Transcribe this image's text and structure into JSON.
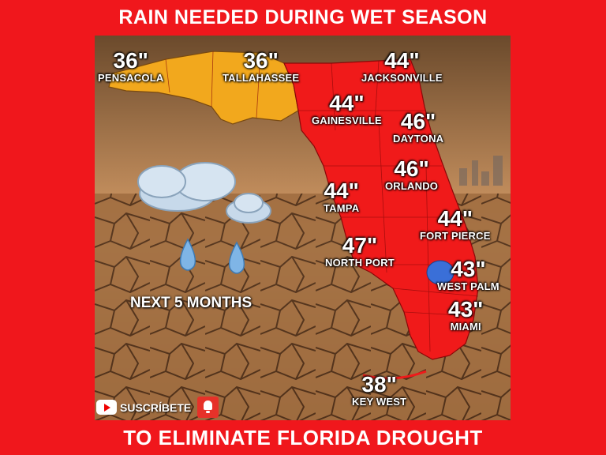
{
  "header": {
    "title": "RAIN NEEDED DURING WET SEASON"
  },
  "footer": {
    "title": "TO ELIMINATE FLORIDA DROUGHT"
  },
  "map": {
    "period_label": "NEXT 5 MONTHS",
    "cities": [
      {
        "id": "pensacola",
        "name": "PENSACOLA",
        "amount": "36\""
      },
      {
        "id": "tallahassee",
        "name": "TALLAHASSEE",
        "amount": "36\""
      },
      {
        "id": "jacksonville",
        "name": "JACKSONVILLE",
        "amount": "44\""
      },
      {
        "id": "gainesville",
        "name": "GAINESVILLE",
        "amount": "44\""
      },
      {
        "id": "daytona",
        "name": "DAYTONA",
        "amount": "46\""
      },
      {
        "id": "orlando",
        "name": "ORLANDO",
        "amount": "46\""
      },
      {
        "id": "tampa",
        "name": "TAMPA",
        "amount": "44\""
      },
      {
        "id": "fort-pierce",
        "name": "FORT PIERCE",
        "amount": "44\""
      },
      {
        "id": "north-port",
        "name": "NORTH PORT",
        "amount": "47\""
      },
      {
        "id": "west-palm",
        "name": "WEST PALM",
        "amount": "43\""
      },
      {
        "id": "miami",
        "name": "MIAMI",
        "amount": "43\""
      },
      {
        "id": "key-west",
        "name": "KEY WEST",
        "amount": "38\""
      }
    ],
    "colors": {
      "panhandle": "#f2a81d",
      "peninsula": "#f01a1a",
      "lake": "#3a6fd8",
      "sky": "#b98655",
      "ground": "#9c6a3c"
    }
  },
  "subscribe": {
    "label": "SUSCRÍBETE",
    "icon": "youtube-icon",
    "bell_icon": "bell-icon"
  }
}
